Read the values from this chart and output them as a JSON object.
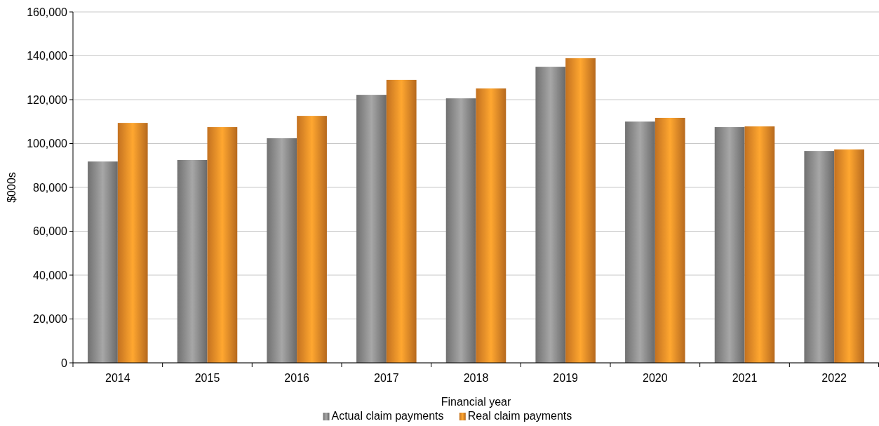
{
  "chart_data": {
    "type": "bar",
    "xlabel": "Financial year",
    "ylabel": "$000s",
    "categories": [
      "2014",
      "2015",
      "2016",
      "2017",
      "2018",
      "2019",
      "2020",
      "2021",
      "2022"
    ],
    "series": [
      {
        "name": "Actual claim payments",
        "color": "#8c8c8c",
        "values": [
          91800,
          92500,
          102400,
          122200,
          120600,
          135000,
          110000,
          107500,
          96600
        ]
      },
      {
        "name": "Real claim payments",
        "color": "#f28c28",
        "values": [
          109400,
          107500,
          112600,
          129000,
          125100,
          138900,
          111700,
          107800,
          97300
        ]
      }
    ],
    "ylim": [
      0,
      160000
    ],
    "yticks": [
      {
        "value": 0,
        "label": "0"
      },
      {
        "value": 20000,
        "label": "20,000"
      },
      {
        "value": 40000,
        "label": "40,000"
      },
      {
        "value": 60000,
        "label": "60,000"
      },
      {
        "value": 80000,
        "label": "80,000"
      },
      {
        "value": 100000,
        "label": "100,000"
      },
      {
        "value": 120000,
        "label": "120,000"
      },
      {
        "value": 140000,
        "label": "140,000"
      },
      {
        "value": 160000,
        "label": "160,000"
      }
    ],
    "grid": "y",
    "legend": "bottom"
  }
}
